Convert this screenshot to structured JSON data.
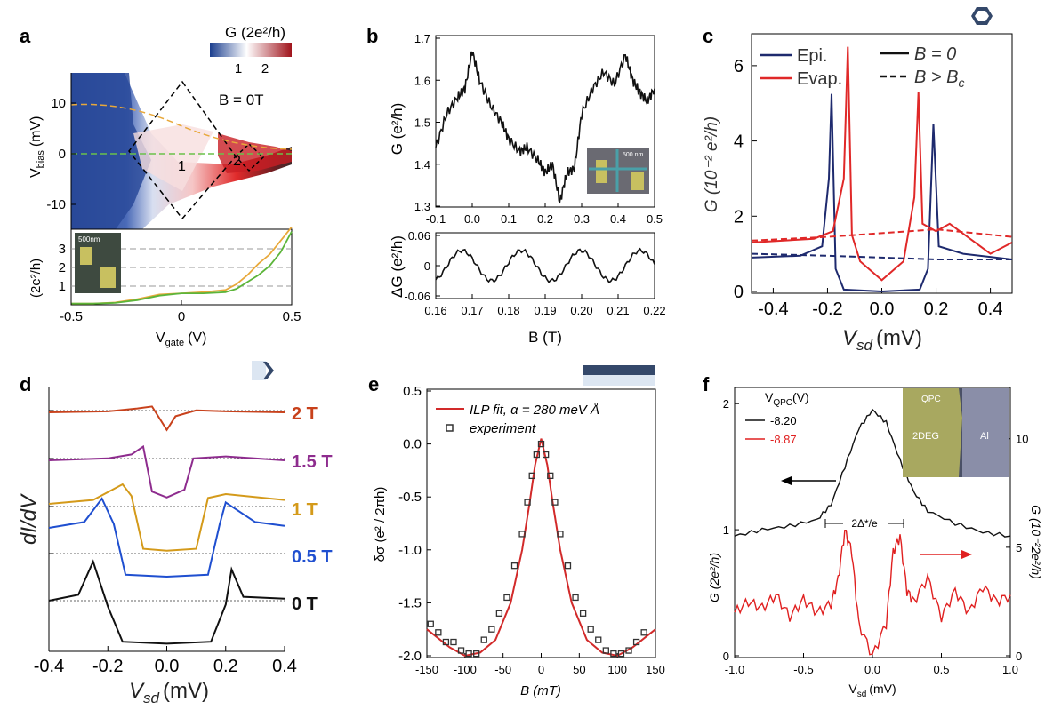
{
  "chart_data": [
    {
      "panel": "a",
      "type": "heatmap",
      "colorbar": {
        "title": "G (2e²/h)",
        "ticks": [
          "1",
          "2"
        ],
        "range": [
          0,
          2.6
        ],
        "colors": [
          "#1c3f8f",
          "#ffffff",
          "#a0141c"
        ]
      },
      "annotations": [
        "B = 0T",
        "1",
        "2"
      ],
      "x": {
        "label": "V",
        "label_sub": "gate",
        "label_unit": "(V)",
        "lim": [
          -0.5,
          0.5
        ],
        "ticks": [
          "-0.5",
          "0",
          "0.5"
        ]
      },
      "y_top": {
        "label": "V",
        "label_sub": "bias",
        "label_unit": "(mV)",
        "lim": [
          -14,
          15
        ],
        "ticks": [
          "10",
          "0",
          "-10"
        ]
      },
      "y_bottom": {
        "label": "(2e²/h)",
        "lim": [
          0.5,
          3.8
        ],
        "ticks": [
          "3",
          "2",
          "1"
        ]
      },
      "inset_scale": "500nm",
      "series": [
        {
          "name": "orange",
          "color": "#e8a83a",
          "x": [
            -0.5,
            -0.4,
            -0.3,
            -0.2,
            -0.1,
            0.0,
            0.1,
            0.2,
            0.25,
            0.3,
            0.35,
            0.4,
            0.45,
            0.5
          ],
          "values": [
            0.55,
            0.55,
            0.6,
            0.75,
            0.95,
            1.0,
            1.05,
            1.15,
            1.4,
            1.8,
            2.3,
            2.7,
            3.3,
            3.9
          ]
        },
        {
          "name": "green",
          "color": "#5cb53a",
          "x": [
            -0.5,
            -0.4,
            -0.3,
            -0.2,
            -0.1,
            0.0,
            0.1,
            0.2,
            0.25,
            0.3,
            0.35,
            0.4,
            0.45,
            0.5
          ],
          "values": [
            0.55,
            0.55,
            0.58,
            0.7,
            0.9,
            1.0,
            1.0,
            1.05,
            1.2,
            1.5,
            1.8,
            2.2,
            2.8,
            3.7
          ]
        }
      ]
    },
    {
      "panel": "b",
      "type": "line",
      "top": {
        "ylabel": "G (e²/h)",
        "ylim": [
          1.3,
          1.7
        ],
        "yticks": [
          "1.7",
          "1.6",
          "1.5",
          "1.4",
          "1.3"
        ],
        "xlim": [
          -0.1,
          0.5
        ],
        "xticks": [
          "-0.1",
          "0.0",
          "0.1",
          "0.2",
          "0.3",
          "0.4",
          "0.5"
        ],
        "x": [
          -0.1,
          -0.07,
          -0.04,
          -0.02,
          0.0,
          0.02,
          0.05,
          0.08,
          0.1,
          0.13,
          0.15,
          0.18,
          0.2,
          0.22,
          0.24,
          0.26,
          0.28,
          0.3,
          0.33,
          0.36,
          0.39,
          0.42,
          0.44,
          0.46,
          0.48,
          0.5
        ],
        "values": [
          1.44,
          1.52,
          1.56,
          1.58,
          1.67,
          1.6,
          1.54,
          1.5,
          1.46,
          1.43,
          1.44,
          1.41,
          1.38,
          1.4,
          1.31,
          1.38,
          1.39,
          1.52,
          1.58,
          1.62,
          1.59,
          1.66,
          1.6,
          1.57,
          1.55,
          1.58
        ]
      },
      "bottom": {
        "ylabel": "ΔG (e²/h)",
        "ylim": [
          -0.06,
          0.06
        ],
        "yticks": [
          "0.06",
          "0",
          "-0.06"
        ],
        "xlabel": "B (T)",
        "xlim": [
          0.16,
          0.22
        ],
        "xticks": [
          "0.16",
          "0.17",
          "0.18",
          "0.19",
          "0.20",
          "0.21",
          "0.22"
        ],
        "x": [
          0.16,
          0.165,
          0.17,
          0.175,
          0.18,
          0.185,
          0.19,
          0.195,
          0.2,
          0.205,
          0.21,
          0.215,
          0.22
        ],
        "values": [
          -0.015,
          0.01,
          0.035,
          0.0,
          -0.025,
          0.01,
          0.035,
          0.0,
          -0.025,
          0.005,
          0.03,
          0.0,
          0.02
        ]
      },
      "inset_scale": "500 nm"
    },
    {
      "panel": "c",
      "type": "line",
      "xlabel": "V",
      "xlabel_sub": "sd",
      "xlabel_unit": "(mV)",
      "xlim": [
        -0.48,
        0.48
      ],
      "xticks": [
        "-0.4",
        "-0.2",
        "0.0",
        "0.2",
        "0.4"
      ],
      "ylabel": "G (10⁻² e²/h)",
      "ylim": [
        0,
        6.8
      ],
      "yticks": [
        "6",
        "4",
        "2",
        "0"
      ],
      "legend": [
        "Epi.",
        "Evap.",
        "B = 0",
        "B > B",
        "c"
      ],
      "series": [
        {
          "name": "Epi. B = 0",
          "color": "#1e2a6e",
          "style": "solid",
          "x": [
            -0.48,
            -0.3,
            -0.22,
            -0.195,
            -0.185,
            -0.17,
            -0.14,
            0.0,
            0.14,
            0.17,
            0.185,
            0.19,
            0.21,
            0.3,
            0.48
          ],
          "values": [
            0.9,
            0.95,
            1.2,
            3.0,
            5.25,
            0.6,
            0.05,
            0.0,
            0.05,
            0.6,
            3.5,
            4.45,
            1.2,
            1.0,
            0.85
          ]
        },
        {
          "name": "Evap. B = 0",
          "color": "#e02828",
          "style": "solid",
          "x": [
            -0.48,
            -0.25,
            -0.18,
            -0.14,
            -0.125,
            -0.11,
            -0.08,
            0.0,
            0.08,
            0.12,
            0.135,
            0.15,
            0.2,
            0.25,
            0.4,
            0.48
          ],
          "values": [
            1.3,
            1.4,
            1.6,
            3.0,
            6.5,
            1.5,
            0.8,
            0.3,
            0.8,
            2.5,
            5.3,
            1.8,
            1.6,
            1.8,
            1.0,
            1.3
          ]
        },
        {
          "name": "Epi. B > Bc",
          "color": "#1e2a6e",
          "style": "dashed",
          "x": [
            -0.48,
            -0.2,
            0.0,
            0.2,
            0.48
          ],
          "values": [
            1.0,
            0.95,
            0.9,
            0.85,
            0.85
          ]
        },
        {
          "name": "Evap. B > Bc",
          "color": "#e02828",
          "style": "dashed",
          "x": [
            -0.48,
            -0.2,
            0.0,
            0.2,
            0.48
          ],
          "values": [
            1.35,
            1.45,
            1.55,
            1.65,
            1.45
          ]
        }
      ]
    },
    {
      "panel": "d",
      "type": "line",
      "xlabel": "V",
      "xlabel_sub": "sd",
      "xlabel_unit": "(mV)",
      "xlim": [
        -0.4,
        0.4
      ],
      "xticks": [
        "-0.4",
        "-0.2",
        "0.0",
        "0.2",
        "0.4"
      ],
      "ylabel": "dI/dV",
      "series": [
        {
          "name": "2 T",
          "color": "#c8411b",
          "x": [
            -0.4,
            -0.2,
            -0.1,
            -0.05,
            0.0,
            0.03,
            0.1,
            0.2,
            0.4
          ],
          "values": [
            0.0,
            0.05,
            0.2,
            0.3,
            -0.9,
            -0.2,
            0.1,
            0.05,
            0.0
          ]
        },
        {
          "name": "1.5 T",
          "color": "#8e2c8e",
          "x": [
            -0.4,
            -0.2,
            -0.12,
            -0.08,
            -0.05,
            0.0,
            0.06,
            0.09,
            0.2,
            0.4
          ],
          "values": [
            0.0,
            0.1,
            0.3,
            0.7,
            -1.6,
            -1.9,
            -1.5,
            0.1,
            0.2,
            0.0
          ]
        },
        {
          "name": "1 T",
          "color": "#d49a1a",
          "x": [
            -0.4,
            -0.25,
            -0.15,
            -0.12,
            -0.08,
            0.0,
            0.1,
            0.14,
            0.2,
            0.4
          ],
          "values": [
            0.0,
            0.2,
            1.0,
            0.4,
            -2.3,
            -2.4,
            -2.3,
            0.3,
            0.5,
            0.2
          ]
        },
        {
          "name": "0.5 T",
          "color": "#1f4fd0",
          "x": [
            -0.4,
            -0.28,
            -0.22,
            -0.18,
            -0.14,
            0.0,
            0.14,
            0.18,
            0.2,
            0.3,
            0.4
          ],
          "values": [
            0.0,
            0.3,
            1.5,
            0.2,
            -2.4,
            -2.5,
            -2.4,
            0.2,
            1.3,
            0.3,
            0.1
          ]
        },
        {
          "name": "0 T",
          "color": "#111111",
          "x": [
            -0.4,
            -0.3,
            -0.25,
            -0.2,
            -0.15,
            0.0,
            0.15,
            0.2,
            0.22,
            0.26,
            0.4
          ],
          "values": [
            0.0,
            0.3,
            2.0,
            -0.3,
            -2.1,
            -2.2,
            -2.1,
            -0.2,
            1.6,
            0.2,
            0.1
          ]
        }
      ],
      "labels": [
        "2 T",
        "1.5 T",
        "1 T",
        "0.5 T",
        "0 T"
      ]
    },
    {
      "panel": "e",
      "type": "scatter",
      "xlabel": "B (mT)",
      "xlim": [
        -150,
        150
      ],
      "xticks": [
        "-150",
        "-100",
        "-50",
        "0",
        "50",
        "100",
        "150"
      ],
      "ylabel": "δσ (e² / 2πh)",
      "ylim": [
        -2.0,
        0.5
      ],
      "yticks": [
        "0.5",
        "0.0",
        "-0.5",
        "-1.0",
        "-1.5",
        "-2.0"
      ],
      "legend": [
        "ILP fit, α = 280 meV Å",
        "experiment"
      ],
      "fit": {
        "name": "ILP fit",
        "color": "#d22a2a",
        "x": [
          -150,
          -120,
          -100,
          -80,
          -60,
          -40,
          -25,
          -15,
          -8,
          0,
          8,
          15,
          25,
          40,
          60,
          80,
          100,
          120,
          150
        ],
        "values": [
          -1.75,
          -1.92,
          -2.0,
          -1.97,
          -1.85,
          -1.5,
          -1.0,
          -0.55,
          -0.2,
          0.05,
          -0.2,
          -0.55,
          -1.0,
          -1.5,
          -1.85,
          -1.97,
          -2.0,
          -1.92,
          -1.75
        ]
      },
      "points": {
        "name": "experiment",
        "x": [
          -145,
          -135,
          -125,
          -115,
          -105,
          -95,
          -85,
          -75,
          -65,
          -55,
          -45,
          -35,
          -25,
          -18,
          -12,
          -6,
          0,
          6,
          12,
          18,
          25,
          35,
          45,
          55,
          65,
          75,
          85,
          95,
          105,
          115,
          125,
          135
        ],
        "values": [
          -1.7,
          -1.78,
          -1.87,
          -1.87,
          -1.95,
          -1.98,
          -1.98,
          -1.85,
          -1.75,
          -1.6,
          -1.45,
          -1.15,
          -0.85,
          -0.55,
          -0.3,
          -0.1,
          0.0,
          -0.1,
          -0.3,
          -0.55,
          -0.85,
          -1.15,
          -1.45,
          -1.6,
          -1.75,
          -1.85,
          -1.95,
          -1.98,
          -1.98,
          -1.95,
          -1.87,
          -1.78
        ]
      }
    },
    {
      "panel": "f",
      "type": "line",
      "xlabel": "V",
      "xlabel_sub": "sd",
      "xlabel_unit": "(mV)",
      "xlim": [
        -1.0,
        1.0
      ],
      "xticks": [
        "-1.0",
        "-0.5",
        "0.0",
        "0.5",
        "1.0"
      ],
      "ylabel_left": "G (2e²/h)",
      "ylim_left": [
        0,
        2.1
      ],
      "yticks_left": [
        "2",
        "1",
        "0"
      ],
      "ylabel_right": "G (10⁻²2e²/h)",
      "ylim_right": [
        0,
        12.2
      ],
      "yticks_right": [
        "10",
        "5",
        "0"
      ],
      "legend_title": "V",
      "legend_title_sub": "QPC",
      "legend_title_unit": "(V)",
      "legend": [
        "-8.20",
        "-8.87"
      ],
      "annotation": "2Δ*/e",
      "inset_labels": [
        "QPC",
        "2DEG",
        "Al"
      ],
      "series": [
        {
          "name": "-8.20",
          "color": "#111111",
          "axis": "left",
          "x": [
            -1.0,
            -0.8,
            -0.6,
            -0.4,
            -0.3,
            -0.2,
            -0.1,
            0.0,
            0.1,
            0.2,
            0.3,
            0.4,
            0.6,
            0.8,
            1.0
          ],
          "values": [
            0.95,
            1.0,
            1.03,
            1.08,
            1.2,
            1.5,
            1.8,
            1.95,
            1.85,
            1.55,
            1.3,
            1.15,
            1.05,
            0.98,
            0.95
          ]
        },
        {
          "name": "-8.87",
          "color": "#e02020",
          "axis": "right",
          "x": [
            -1.0,
            -0.9,
            -0.8,
            -0.7,
            -0.6,
            -0.5,
            -0.4,
            -0.3,
            -0.25,
            -0.2,
            -0.15,
            -0.1,
            0.0,
            0.1,
            0.15,
            0.2,
            0.25,
            0.3,
            0.4,
            0.5,
            0.6,
            0.7,
            0.8,
            0.9,
            1.0
          ],
          "values": [
            2.0,
            2.5,
            2.2,
            2.8,
            1.8,
            2.6,
            2.0,
            2.4,
            3.5,
            5.8,
            4.8,
            1.5,
            0.0,
            1.5,
            4.8,
            5.5,
            3.0,
            2.5,
            3.6,
            1.8,
            3.0,
            2.0,
            3.2,
            2.5,
            2.8
          ]
        }
      ]
    }
  ]
}
